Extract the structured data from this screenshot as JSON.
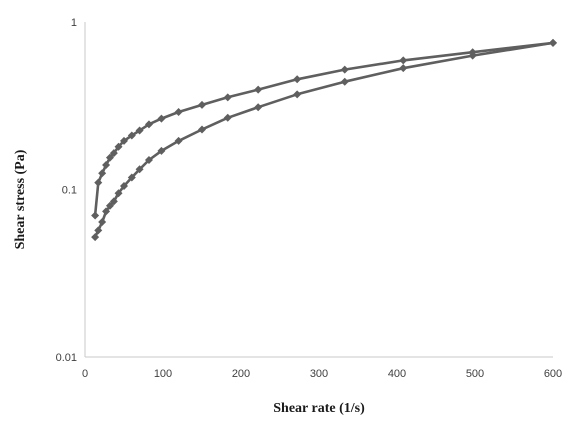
{
  "chart_data": {
    "type": "scatter",
    "title": "",
    "xlabel": "Shear rate (1/s)",
    "ylabel": "Shear stress (Pa)",
    "xlim": [
      0,
      600
    ],
    "ylim": [
      0.01,
      1
    ],
    "yscale": "log",
    "grid": false,
    "legend": "none",
    "x_ticks": [
      "0",
      "100",
      "200",
      "300",
      "400",
      "500",
      "600"
    ],
    "y_ticks": [
      "0.01",
      "0.1",
      "1"
    ],
    "series_color": "#5f5f5f",
    "series": [
      {
        "x": [
          13,
          17,
          22,
          27,
          32,
          37,
          43,
          50,
          60,
          70,
          82,
          98,
          120,
          150,
          183,
          222,
          272,
          333,
          408,
          497,
          600
        ],
        "y": [
          0.07,
          0.11,
          0.125,
          0.14,
          0.155,
          0.165,
          0.18,
          0.195,
          0.21,
          0.225,
          0.245,
          0.265,
          0.29,
          0.32,
          0.355,
          0.395,
          0.455,
          0.52,
          0.59,
          0.66,
          0.75
        ]
      },
      {
        "x": [
          13,
          17,
          22,
          27,
          32,
          37,
          43,
          50,
          60,
          70,
          82,
          98,
          120,
          150,
          183,
          222,
          272,
          333,
          408,
          497,
          600
        ],
        "y": [
          0.052,
          0.057,
          0.064,
          0.074,
          0.08,
          0.085,
          0.095,
          0.105,
          0.118,
          0.132,
          0.15,
          0.17,
          0.195,
          0.228,
          0.268,
          0.31,
          0.37,
          0.44,
          0.53,
          0.63,
          0.75
        ]
      }
    ]
  }
}
